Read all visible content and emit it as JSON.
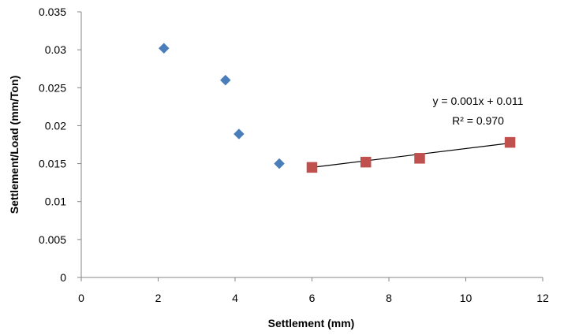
{
  "chart_data": {
    "type": "scatter",
    "title": "",
    "xlabel": "Settlement (mm)",
    "ylabel": "Settlement/Load (mm/Ton)",
    "xlim": [
      0,
      12
    ],
    "ylim": [
      0,
      0.035
    ],
    "x_ticks": [
      "0",
      "2",
      "4",
      "6",
      "8",
      "10",
      "12"
    ],
    "y_ticks": [
      "0",
      "0.005",
      "0.01",
      "0.015",
      "0.02",
      "0.025",
      "0.03",
      "0.035"
    ],
    "grid": false,
    "legend": "none",
    "series": [
      {
        "marker": "diamond",
        "color": "#4a7ebb",
        "points": [
          {
            "x": 2.15,
            "y": 0.0302
          },
          {
            "x": 3.75,
            "y": 0.026
          },
          {
            "x": 4.1,
            "y": 0.0189
          },
          {
            "x": 5.15,
            "y": 0.015
          }
        ]
      },
      {
        "marker": "square",
        "color": "#c0504d",
        "points": [
          {
            "x": 6.0,
            "y": 0.0145
          },
          {
            "x": 7.4,
            "y": 0.0152
          },
          {
            "x": 8.8,
            "y": 0.0157
          },
          {
            "x": 11.15,
            "y": 0.0178
          }
        ],
        "trendline": {
          "x_range": [
            6.0,
            11.15
          ],
          "y_range": [
            0.0145,
            0.0177
          ],
          "equation": "y = 0.001x + 0.011",
          "r2_label": "R² = 0.970"
        }
      }
    ]
  }
}
